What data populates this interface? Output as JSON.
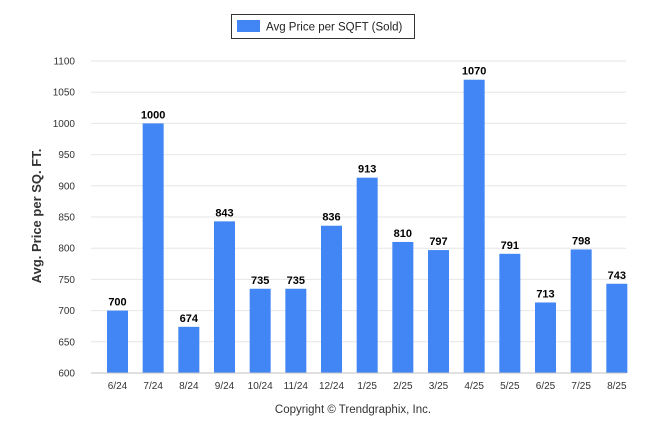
{
  "chart_data": {
    "type": "bar",
    "title": "",
    "xlabel": "",
    "ylabel": "Avg. Price per SQ. FT.",
    "ylim": [
      600,
      1100
    ],
    "yticks": [
      600,
      650,
      700,
      750,
      800,
      850,
      900,
      950,
      1000,
      1050,
      1100
    ],
    "categories": [
      "6/24",
      "7/24",
      "8/24",
      "9/24",
      "10/24",
      "11/24",
      "12/24",
      "1/25",
      "2/25",
      "3/25",
      "4/25",
      "5/25",
      "6/25",
      "7/25",
      "8/25"
    ],
    "series": [
      {
        "name": "Avg Price per SQFT (Sold)",
        "color": "#4285f4",
        "values": [
          700,
          1000,
          674,
          843,
          735,
          735,
          836,
          913,
          810,
          797,
          1070,
          791,
          713,
          798,
          743
        ]
      }
    ],
    "grid": true,
    "legend_position": "top-center",
    "data_labels": true
  },
  "legend": {
    "label": "Avg Price per SQFT (Sold)"
  },
  "credit": "Copyright © Trendgraphix, Inc."
}
